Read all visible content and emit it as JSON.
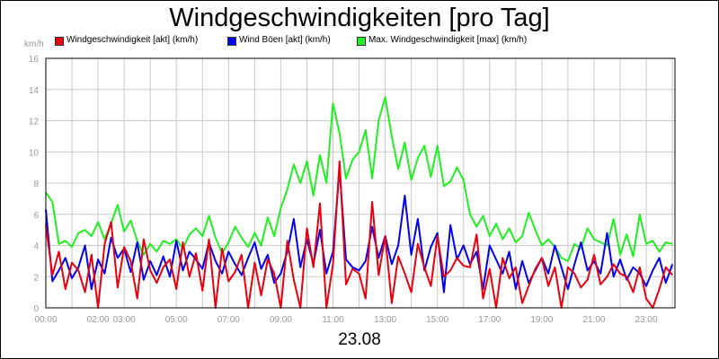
{
  "chart_data": {
    "type": "line",
    "title": "Windgeschwindigkeiten [pro Tag]",
    "ylabel": "km/h",
    "xlabel": "23.08",
    "ylim": [
      0,
      16
    ],
    "yticks": [
      0,
      2,
      4,
      6,
      8,
      10,
      12,
      14,
      16
    ],
    "xlim": [
      0,
      24.1
    ],
    "xticks": [
      {
        "label": "00:00",
        "x": 0
      },
      {
        "label": "02:00",
        "x": 2.0
      },
      {
        "label": "03:00",
        "x": 3.0
      },
      {
        "label": "05:00",
        "x": 5.0
      },
      {
        "label": "07:00",
        "x": 7.0
      },
      {
        "label": "09:00",
        "x": 9.0
      },
      {
        "label": "11:00",
        "x": 11.0
      },
      {
        "label": "13:00",
        "x": 13.0
      },
      {
        "label": "15:00",
        "x": 15.0
      },
      {
        "label": "17:00",
        "x": 17.0
      },
      {
        "label": "19:00",
        "x": 19.0
      },
      {
        "label": "21:00",
        "x": 21.0
      },
      {
        "label": "23:00",
        "x": 23.0
      }
    ],
    "grid": true,
    "legend": "top-left",
    "series": [
      {
        "name": "Windgeschwindigkeit [akt] (km/h)",
        "color": "#e8000f",
        "x": [
          0.0,
          0.25,
          0.5,
          0.75,
          1.0,
          1.25,
          1.5,
          1.75,
          2.0,
          2.25,
          2.5,
          2.75,
          3.0,
          3.25,
          3.5,
          3.75,
          4.0,
          4.25,
          4.5,
          4.75,
          5.0,
          5.25,
          5.5,
          5.75,
          6.0,
          6.25,
          6.5,
          6.75,
          7.0,
          7.25,
          7.5,
          7.75,
          8.0,
          8.25,
          8.5,
          8.75,
          9.0,
          9.25,
          9.5,
          9.75,
          10.0,
          10.25,
          10.5,
          10.75,
          11.0,
          11.25,
          11.5,
          11.75,
          12.0,
          12.25,
          12.5,
          12.75,
          13.0,
          13.25,
          13.5,
          13.75,
          14.0,
          14.25,
          14.5,
          14.75,
          15.0,
          15.25,
          15.5,
          15.75,
          16.0,
          16.25,
          16.5,
          16.75,
          17.0,
          17.25,
          17.5,
          17.75,
          18.0,
          18.25,
          18.5,
          18.75,
          19.0,
          19.25,
          19.5,
          19.75,
          20.0,
          20.25,
          20.5,
          20.75,
          21.0,
          21.25,
          21.5,
          21.75,
          22.0,
          22.25,
          22.5,
          22.75,
          23.0,
          23.25,
          23.5,
          23.75,
          24.0
        ],
        "values": [
          5.3,
          2.1,
          3.6,
          1.2,
          2.9,
          2.4,
          1.0,
          3.4,
          0.0,
          4.1,
          5.5,
          1.3,
          3.9,
          3.0,
          0.6,
          4.4,
          2.4,
          1.6,
          2.6,
          3.1,
          1.2,
          4.2,
          2.0,
          3.5,
          1.1,
          4.4,
          0.0,
          3.8,
          1.7,
          2.3,
          3.4,
          0.0,
          2.9,
          0.8,
          3.1,
          2.2,
          0.0,
          4.3,
          1.8,
          0.0,
          5.1,
          2.6,
          6.7,
          0.0,
          2.8,
          9.4,
          1.5,
          2.5,
          2.2,
          0.6,
          6.8,
          2.1,
          4.6,
          0.3,
          3.3,
          2.2,
          1.0,
          4.1,
          2.6,
          1.4,
          4.6,
          2.0,
          2.4,
          3.2,
          2.7,
          2.6,
          4.7,
          0.6,
          2.5,
          0.0,
          3.2,
          1.9,
          2.6,
          0.3,
          1.4,
          2.5,
          3.2,
          1.4,
          2.6,
          0.0,
          2.6,
          2.2,
          1.3,
          1.8,
          3.4,
          1.5,
          2.0,
          2.8,
          2.2,
          2.0,
          1.0,
          2.6,
          0.6,
          0.0,
          1.2,
          2.6,
          2.1
        ]
      },
      {
        "name": "Wind Böen [akt] (km/h)",
        "color": "#0000ee",
        "x": [
          0.0,
          0.25,
          0.5,
          0.75,
          1.0,
          1.25,
          1.5,
          1.75,
          2.0,
          2.25,
          2.5,
          2.75,
          3.0,
          3.25,
          3.5,
          3.75,
          4.0,
          4.25,
          4.5,
          4.75,
          5.0,
          5.25,
          5.5,
          5.75,
          6.0,
          6.25,
          6.5,
          6.75,
          7.0,
          7.25,
          7.5,
          7.75,
          8.0,
          8.25,
          8.5,
          8.75,
          9.0,
          9.25,
          9.5,
          9.75,
          10.0,
          10.25,
          10.5,
          10.75,
          11.0,
          11.25,
          11.5,
          11.75,
          12.0,
          12.25,
          12.5,
          12.75,
          13.0,
          13.25,
          13.5,
          13.75,
          14.0,
          14.25,
          14.5,
          14.75,
          15.0,
          15.25,
          15.5,
          15.75,
          16.0,
          16.25,
          16.5,
          16.75,
          17.0,
          17.25,
          17.5,
          17.75,
          18.0,
          18.25,
          18.5,
          18.75,
          19.0,
          19.25,
          19.5,
          19.75,
          20.0,
          20.25,
          20.5,
          20.75,
          21.0,
          21.25,
          21.5,
          21.75,
          22.0,
          22.25,
          22.5,
          22.75,
          23.0,
          23.25,
          23.5,
          23.75,
          24.0
        ],
        "values": [
          6.3,
          1.7,
          2.4,
          3.2,
          1.9,
          2.6,
          4.0,
          1.2,
          3.1,
          2.2,
          4.5,
          3.2,
          3.8,
          2.3,
          4.2,
          1.8,
          3.0,
          2.1,
          3.3,
          2.0,
          4.3,
          2.4,
          3.6,
          3.1,
          2.5,
          4.2,
          3.0,
          2.2,
          3.6,
          2.8,
          2.1,
          3.2,
          4.2,
          2.5,
          3.4,
          1.6,
          2.2,
          3.6,
          5.7,
          2.6,
          4.4,
          2.8,
          5.0,
          2.2,
          3.6,
          8.9,
          3.1,
          2.6,
          2.4,
          3.0,
          5.2,
          3.2,
          4.6,
          2.8,
          4.0,
          7.2,
          3.4,
          5.7,
          2.4,
          3.9,
          4.8,
          1.0,
          5.3,
          3.1,
          4.0,
          2.8,
          3.6,
          1.2,
          4.0,
          3.1,
          2.2,
          3.6,
          1.2,
          3.0,
          1.6,
          2.4,
          3.2,
          2.2,
          4.0,
          2.6,
          1.2,
          2.8,
          4.2,
          2.4,
          3.0,
          2.2,
          4.8,
          2.0,
          3.1,
          1.8,
          2.6,
          2.2,
          1.4,
          2.4,
          3.2,
          1.6,
          2.8
        ]
      },
      {
        "name": "Max. Windgeschwindigkeit [max] (km/h)",
        "color": "#22ee22",
        "x": [
          0.0,
          0.25,
          0.5,
          0.75,
          1.0,
          1.25,
          1.5,
          1.75,
          2.0,
          2.25,
          2.5,
          2.75,
          3.0,
          3.25,
          3.5,
          3.75,
          4.0,
          4.25,
          4.5,
          4.75,
          5.0,
          5.25,
          5.5,
          5.75,
          6.0,
          6.25,
          6.5,
          6.75,
          7.0,
          7.25,
          7.5,
          7.75,
          8.0,
          8.25,
          8.5,
          8.75,
          9.0,
          9.25,
          9.5,
          9.75,
          10.0,
          10.25,
          10.5,
          10.75,
          11.0,
          11.25,
          11.5,
          11.75,
          12.0,
          12.25,
          12.5,
          12.75,
          13.0,
          13.25,
          13.5,
          13.75,
          14.0,
          14.25,
          14.5,
          14.75,
          15.0,
          15.25,
          15.5,
          15.75,
          16.0,
          16.25,
          16.5,
          16.75,
          17.0,
          17.25,
          17.5,
          17.75,
          18.0,
          18.25,
          18.5,
          18.75,
          19.0,
          19.25,
          19.5,
          19.75,
          20.0,
          20.25,
          20.5,
          20.75,
          21.0,
          21.25,
          21.5,
          21.75,
          22.0,
          22.25,
          22.5,
          22.75,
          23.0,
          23.25,
          23.5,
          23.75,
          24.0
        ],
        "values": [
          7.4,
          6.8,
          4.1,
          4.3,
          3.9,
          4.8,
          5.0,
          4.6,
          5.5,
          4.4,
          5.4,
          6.6,
          4.9,
          5.6,
          4.3,
          3.4,
          4.1,
          3.6,
          4.3,
          4.1,
          4.4,
          3.8,
          4.7,
          5.1,
          4.6,
          5.9,
          4.5,
          3.5,
          4.2,
          5.2,
          4.5,
          3.9,
          4.8,
          4.0,
          5.8,
          4.6,
          6.4,
          7.6,
          9.2,
          8.0,
          9.4,
          7.2,
          9.8,
          8.0,
          13.1,
          11.2,
          8.3,
          9.5,
          10.0,
          11.4,
          8.3,
          12.0,
          13.5,
          11.0,
          8.9,
          10.6,
          8.2,
          9.6,
          10.4,
          8.4,
          10.4,
          7.8,
          8.1,
          9.0,
          8.2,
          6.0,
          5.2,
          5.9,
          4.6,
          5.4,
          4.4,
          5.1,
          4.2,
          4.6,
          6.1,
          5.0,
          4.0,
          4.4,
          3.9,
          3.2,
          3.0,
          4.1,
          3.8,
          5.1,
          4.4,
          4.2,
          4.0,
          5.7,
          3.4,
          4.7,
          3.3,
          6.0,
          4.1,
          4.3,
          3.6,
          4.2,
          4.1
        ]
      }
    ]
  }
}
